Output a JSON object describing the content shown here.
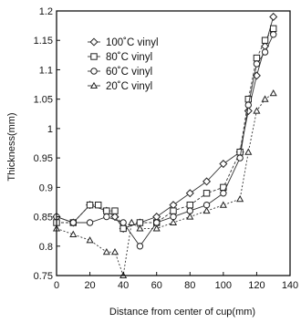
{
  "chart_data": {
    "type": "line",
    "xlabel": "Distance from center  of cup(mm)",
    "ylabel": "Thickness(mm)",
    "xlim": [
      0,
      140
    ],
    "ylim": [
      0.75,
      1.2
    ],
    "xticks": [
      0,
      20,
      40,
      60,
      80,
      100,
      120,
      140
    ],
    "yticks": [
      0.75,
      0.8,
      0.85,
      0.9,
      0.95,
      1,
      1.05,
      1.1,
      1.15,
      1.2
    ],
    "ytick_labels": [
      "0.75",
      "0.8",
      "0.85",
      "0.9",
      "0.95",
      "1",
      "1.05",
      "1.1",
      "1.15",
      "1.2"
    ],
    "grid": false,
    "legend_position": "upper-left",
    "series": [
      {
        "name": "100˚C vinyl",
        "marker": "diamond",
        "x": [
          0,
          10,
          20,
          30,
          35,
          40,
          50,
          60,
          70,
          80,
          90,
          100,
          110,
          115,
          120,
          125,
          130
        ],
        "y": [
          0.85,
          0.84,
          0.87,
          0.86,
          0.85,
          0.83,
          0.84,
          0.85,
          0.87,
          0.89,
          0.91,
          0.94,
          0.96,
          1.03,
          1.09,
          1.14,
          1.19
        ]
      },
      {
        "name": "80˚C vinyl",
        "marker": "square",
        "x": [
          0,
          10,
          20,
          25,
          30,
          35,
          40,
          50,
          60,
          70,
          80,
          90,
          100,
          110,
          115,
          120,
          125,
          130
        ],
        "y": [
          0.84,
          0.84,
          0.87,
          0.87,
          0.86,
          0.86,
          0.83,
          0.84,
          0.84,
          0.86,
          0.87,
          0.89,
          0.9,
          0.96,
          1.05,
          1.12,
          1.15,
          1.17
        ]
      },
      {
        "name": "60˚C vinyl",
        "marker": "circle",
        "x": [
          0,
          10,
          20,
          30,
          40,
          50,
          60,
          70,
          80,
          90,
          100,
          110,
          115,
          120,
          125,
          130
        ],
        "y": [
          0.85,
          0.84,
          0.84,
          0.85,
          0.84,
          0.8,
          0.84,
          0.85,
          0.86,
          0.87,
          0.89,
          0.95,
          1.04,
          1.11,
          1.13,
          1.16
        ]
      },
      {
        "name": "20˚C vinyl",
        "marker": "triangle",
        "x": [
          0,
          10,
          20,
          30,
          35,
          40,
          45,
          50,
          60,
          70,
          80,
          90,
          100,
          110,
          115,
          120,
          125,
          130
        ],
        "y": [
          0.83,
          0.82,
          0.81,
          0.79,
          0.79,
          0.75,
          0.84,
          0.83,
          0.83,
          0.84,
          0.85,
          0.86,
          0.87,
          0.88,
          0.96,
          1.03,
          1.05,
          1.06
        ]
      }
    ]
  }
}
